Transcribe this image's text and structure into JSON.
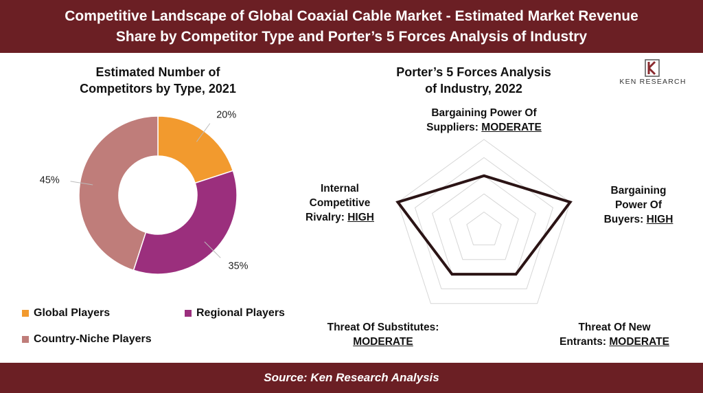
{
  "header": {
    "title_line1": "Competitive Landscape of Global Coaxial Cable Market - Estimated Market Revenue",
    "title_line2": "Share by Competitor Type and Porter’s 5 Forces Analysis of Industry"
  },
  "footer": {
    "source": "Source: Ken Research Analysis"
  },
  "logo": {
    "text": "KEN RESEARCH",
    "icon": "ken-research-k-logo"
  },
  "colors": {
    "brand": "#6b1f24",
    "global": "#f29a2e",
    "regional": "#9b2f7d",
    "niche": "#bf7d7a"
  },
  "chart_data": [
    {
      "type": "pie",
      "title_line1": "Estimated Number of",
      "title_line2": "Competitors by Type, 2021",
      "categories": [
        "Global Players",
        "Regional Players",
        "Country-Niche Players"
      ],
      "values": [
        20,
        35,
        45
      ],
      "value_labels": [
        "20%",
        "35%",
        "45%"
      ],
      "donut": true,
      "legend_position": "bottom"
    },
    {
      "type": "radar",
      "title_line1": "Porter’s 5 Forces Analysis",
      "title_line2": "of Industry, 2022",
      "forces": [
        {
          "line1": "Bargaining Power Of",
          "line2_prefix": "Suppliers: ",
          "level": "MODERATE",
          "score": 3
        },
        {
          "line1": "Bargaining",
          "line2": "Power Of",
          "line3_prefix": "Buyers: ",
          "level": "HIGH",
          "score": 5
        },
        {
          "line1": "Threat Of New",
          "line2_prefix": "Entrants: ",
          "level": "MODERATE",
          "score": 3
        },
        {
          "line1": "Threat Of Substitutes:",
          "level": "MODERATE",
          "score": 3
        },
        {
          "line1": "Internal",
          "line2": "Competitive",
          "line3_prefix": "Rivalry: ",
          "level": "HIGH",
          "score": 5
        }
      ],
      "scale_max": 5,
      "grid_rings": 5
    }
  ]
}
